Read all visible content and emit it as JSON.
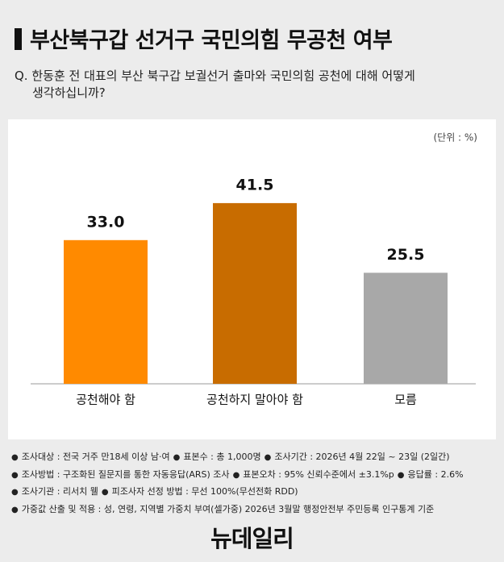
{
  "chart_data": {
    "type": "bar",
    "title": "부산북구갑 선거구 국민의힘 무공천 여부",
    "subtitle": [
      "Q. 한동훈 전 대표의 부산 북구갑 보궐선거 출마와 국민의힘 공천에 대해 어떻게",
      "생각하십니까?"
    ],
    "unit": "(단위 : %)",
    "categories": [
      "공천해야 함",
      "공천하지 말아야 함",
      "모름"
    ],
    "values": [
      33.0,
      41.5,
      25.5
    ],
    "value_labels": [
      "33.0",
      "41.5",
      "25.5"
    ],
    "colors": [
      "#ff8a00",
      "#c86c00",
      "#a8a8a8"
    ]
  },
  "notes": [
    [
      "조사대상 : 전국 거주 만18세 이상 남·여",
      "표본수 : 총 1,000명",
      "조사기간 : 2026년 4월 22일 ~ 23일 (2일간)"
    ],
    [
      "조사방법 : 구조화된 질문지를 통한 자동응답(ARS) 조사",
      "표본오차 : 95% 신뢰수준에서 ±3.1%p",
      "응답률 : 2.6%"
    ],
    [
      "조사기관 : 리서치 웰",
      "피조사자 선정 방법 : 무선 100%(무선전화 RDD)"
    ],
    [
      "가중값 산출 및 적용 : 성, 연령, 지역별 가중치 부여(셀가중) 2026년 3월말 행정안전부 주민등록 인구통계 기준"
    ]
  ],
  "logo": "뉴데일리"
}
